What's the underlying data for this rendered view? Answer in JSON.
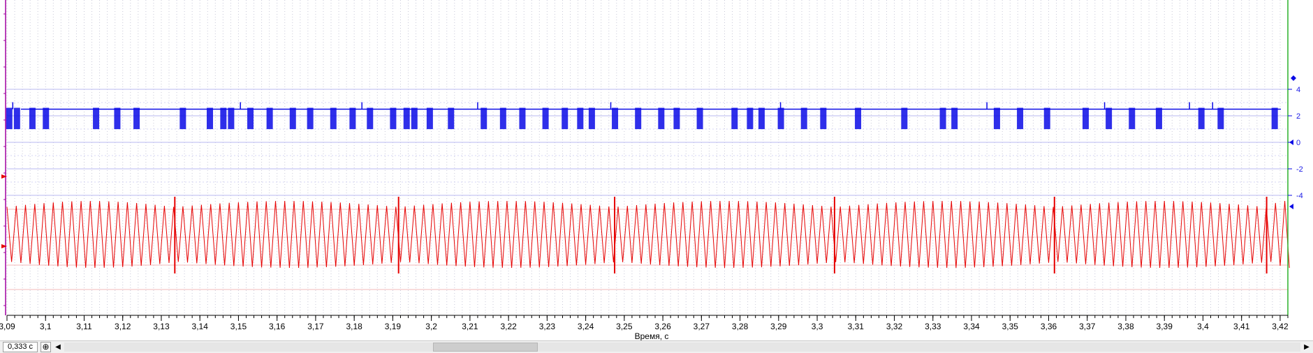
{
  "chart_data": {
    "type": "line",
    "xlabel": "Время, с",
    "x_range": [
      3.09,
      3.422
    ],
    "x_ticks": [
      "3,09",
      "3,1",
      "3,11",
      "3,12",
      "3,13",
      "3,14",
      "3,15",
      "3,16",
      "3,17",
      "3,18",
      "3,19",
      "3,2",
      "3,21",
      "3,22",
      "3,23",
      "3,24",
      "3,25",
      "3,26",
      "3,27",
      "3,28",
      "3,29",
      "3,3",
      "3,31",
      "3,32",
      "3,33",
      "3,34",
      "3,35",
      "3,36",
      "3,37",
      "3,38",
      "3,39",
      "3,4",
      "3,41",
      "3,42"
    ],
    "grid": true,
    "y_right": {
      "range": [
        -5,
        5
      ],
      "ticks": [
        "4",
        "2",
        "0",
        "-2",
        "-4"
      ]
    },
    "series": [
      {
        "channel": "blue",
        "color": "#0a0ae6",
        "baseline": 2.5,
        "low_level": 1.1,
        "pulse_bursts": [
          3.0905,
          3.0925,
          3.0965,
          3.1,
          3.113,
          3.1185,
          3.1235,
          3.1355,
          3.1425,
          3.146,
          3.148,
          3.153,
          3.158,
          3.164,
          3.1685,
          3.1745,
          3.1795,
          3.184,
          3.19,
          3.1935,
          3.1955,
          3.1995,
          3.205,
          3.2135,
          3.2185,
          3.2235,
          3.2295,
          3.2345,
          3.2385,
          3.2415,
          3.2475,
          3.2535,
          3.2595,
          3.2635,
          3.2695,
          3.2785,
          3.2825,
          3.2855,
          3.2905,
          3.2965,
          3.3015,
          3.3105,
          3.3225,
          3.3325,
          3.3355,
          3.3465,
          3.3525,
          3.3595,
          3.3695,
          3.3755,
          3.3815,
          3.3885,
          3.3995,
          3.4045,
          3.4185
        ],
        "spike_marks": [
          3.0915,
          3.1505,
          3.182,
          3.212,
          3.2465,
          3.2905,
          3.344,
          3.3745,
          3.3965,
          3.4025
        ]
      },
      {
        "channel": "red",
        "color": "#e60000",
        "upper_envelope": 3.0,
        "lower_envelope": -5.0,
        "cycle_period_s": 0.0024,
        "sync_marks": [
          3.1335,
          3.1915,
          3.2475,
          3.3045,
          3.3615,
          3.4165
        ]
      }
    ]
  },
  "statusbar": {
    "timebase": "0,333 с",
    "zoom_glyph": "⊕",
    "scroll_left_glyph": "◀",
    "scroll_right_glyph": "▶"
  }
}
